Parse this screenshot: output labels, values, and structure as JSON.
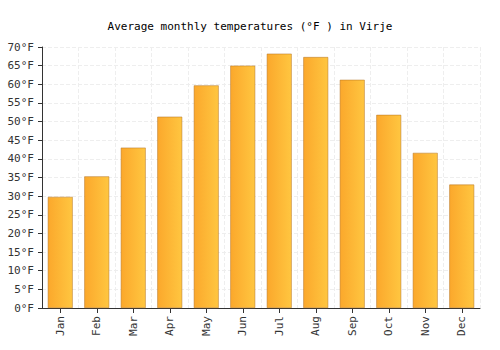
{
  "chart_data": {
    "type": "bar",
    "title": "Average monthly temperatures (°F ) in Virje",
    "categories": [
      "Jan",
      "Feb",
      "Mar",
      "Apr",
      "May",
      "Jun",
      "Jul",
      "Aug",
      "Sep",
      "Oct",
      "Nov",
      "Dec"
    ],
    "values": [
      29.8,
      35.3,
      43.0,
      51.3,
      59.7,
      65.0,
      68.2,
      67.3,
      61.2,
      51.8,
      41.6,
      33.1
    ],
    "color": "#fba82c",
    "ylim": [
      0,
      70
    ],
    "yticks": [
      {
        "value": 0,
        "label": "0°F"
      },
      {
        "value": 5,
        "label": "5°F"
      },
      {
        "value": 10,
        "label": "10°F"
      },
      {
        "value": 15,
        "label": "15°F"
      },
      {
        "value": 20,
        "label": "20°F"
      },
      {
        "value": 25,
        "label": "25°F"
      },
      {
        "value": 30,
        "label": "30°F"
      },
      {
        "value": 35,
        "label": "35°F"
      },
      {
        "value": 40,
        "label": "40°F"
      },
      {
        "value": 45,
        "label": "45°F"
      },
      {
        "value": 50,
        "label": "50°F"
      },
      {
        "value": 55,
        "label": "55°F"
      },
      {
        "value": 60,
        "label": "60°F"
      },
      {
        "value": 65,
        "label": "65°F"
      },
      {
        "value": 70,
        "label": "70°F"
      }
    ],
    "grid": true
  }
}
